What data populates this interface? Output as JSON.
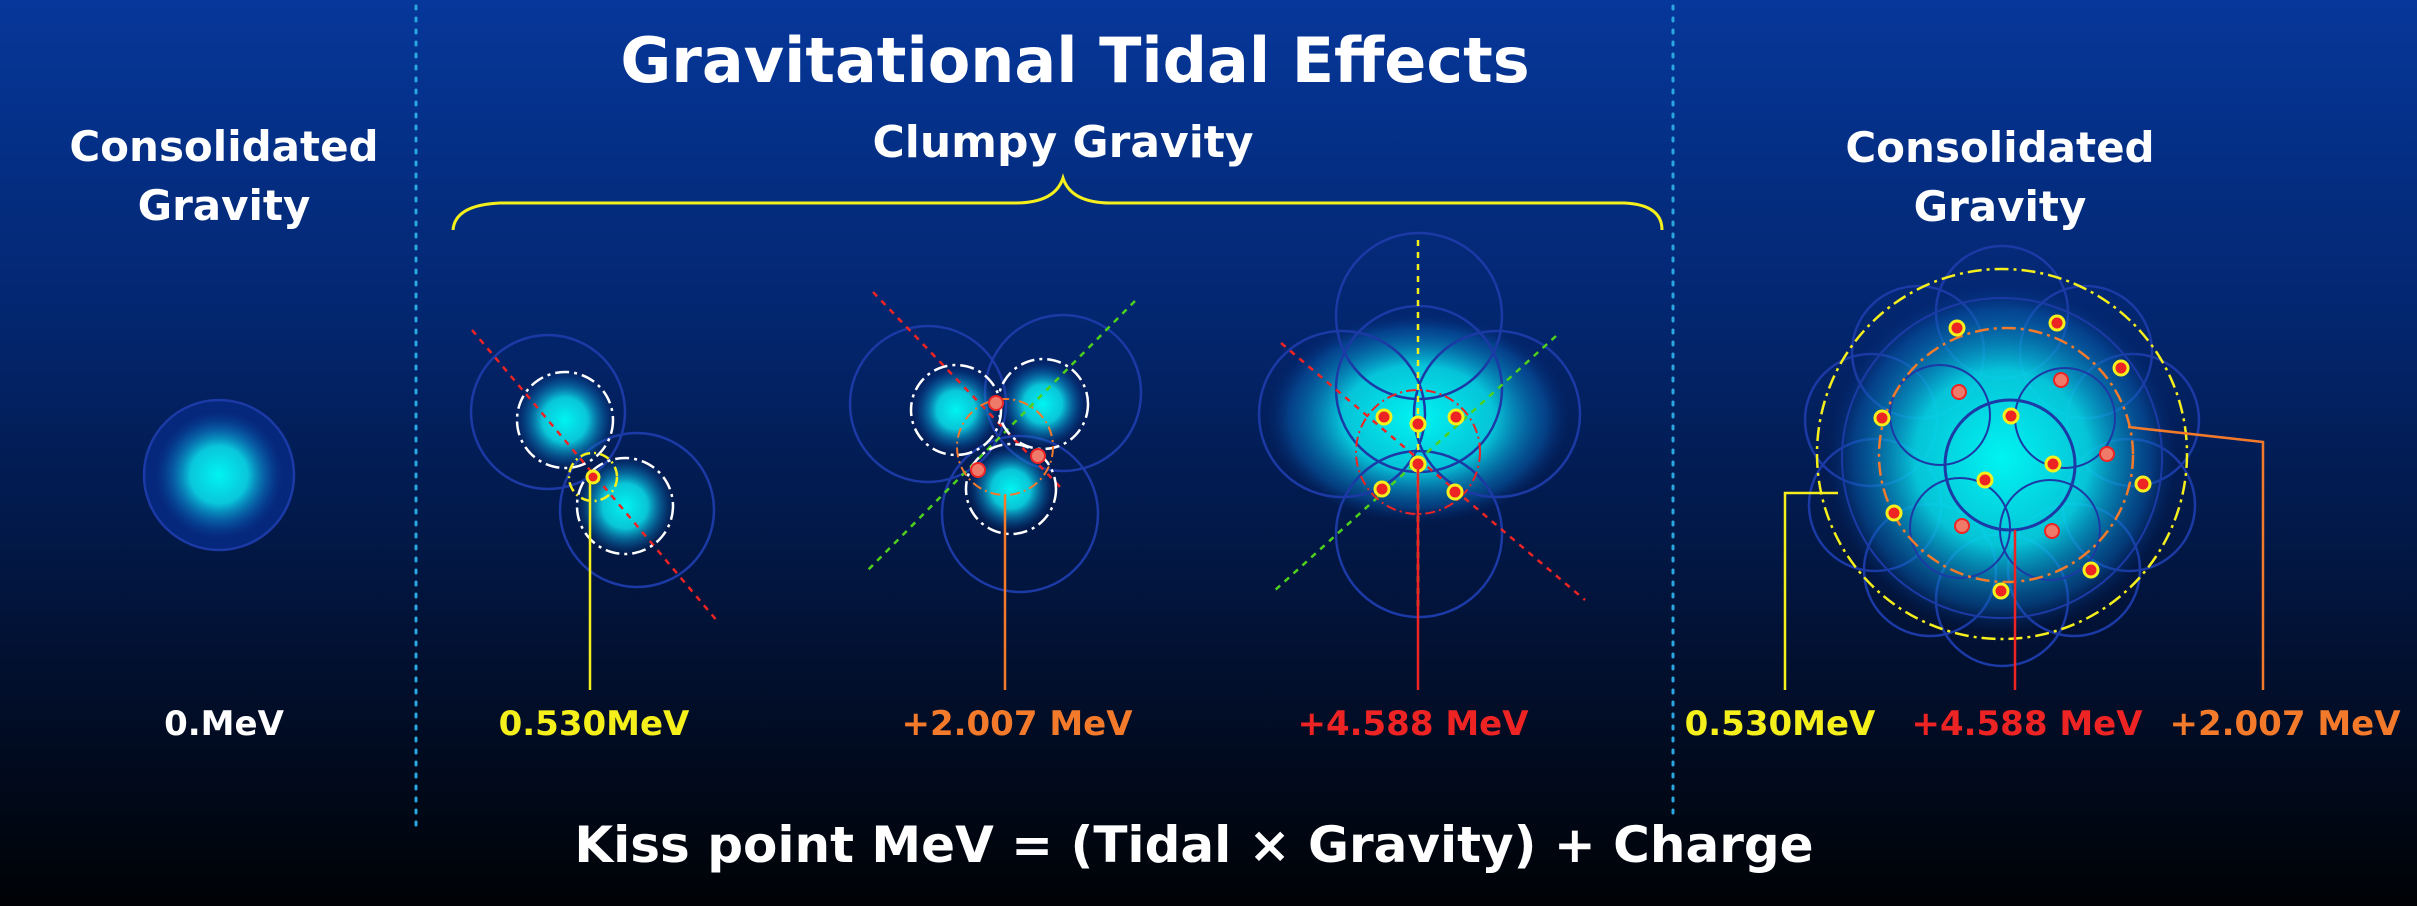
{
  "title": "Gravitational Tidal Effects",
  "left_panel": {
    "heading_line1": "Consolidated",
    "heading_line2": "Gravity",
    "value": "0.MeV"
  },
  "middle_panel": {
    "heading": "Clumpy Gravity",
    "values": [
      "0.530MeV",
      "+2.007 MeV",
      "+4.588 MeV"
    ]
  },
  "right_panel": {
    "heading_line1": "Consolidated",
    "heading_line2": "Gravity",
    "values": [
      "0.530MeV",
      "+4.588 MeV",
      "+2.007 MeV"
    ]
  },
  "formula": "Kiss point MeV = (Tidal × Gravity) + Charge",
  "colors": {
    "yellow": "#f5ef1c",
    "orange": "#f47a2b",
    "red": "#ee2323",
    "white": "#ffffff",
    "cyan": "#00f4f2",
    "ring": "#1c3aa6",
    "divider": "#2aa7e0",
    "green": "#4ed11c"
  }
}
